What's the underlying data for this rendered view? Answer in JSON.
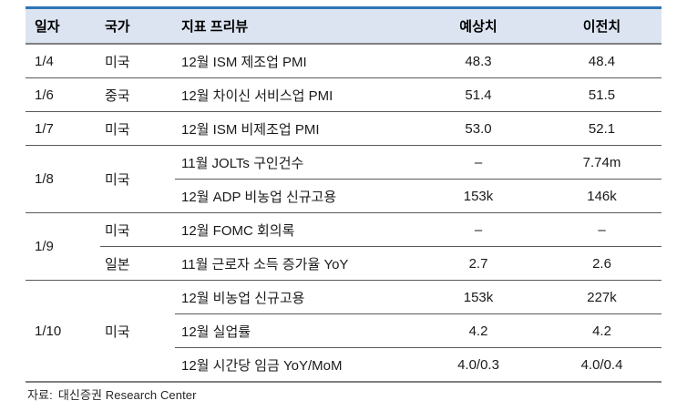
{
  "table": {
    "headers": {
      "date": "일자",
      "country": "국가",
      "indicator": "지표 프리뷰",
      "expected": "예상치",
      "previous": "이전치"
    },
    "rows": [
      {
        "date": "1/4",
        "country": "미국",
        "indicator": "12월 ISM 제조업 PMI",
        "expected": "48.3",
        "previous": "48.4"
      },
      {
        "date": "1/6",
        "country": "중국",
        "indicator": "12월 차이신 서비스업 PMI",
        "expected": "51.4",
        "previous": "51.5"
      },
      {
        "date": "1/7",
        "country": "미국",
        "indicator": "12월 ISM 비제조업 PMI",
        "expected": "53.0",
        "previous": "52.1"
      },
      {
        "date": "1/8",
        "country": "미국",
        "indicator": "11월 JOLTs 구인건수",
        "expected": "–",
        "previous": "7.74m"
      },
      {
        "indicator": "12월 ADP 비농업 신규고용",
        "expected": "153k",
        "previous": "146k"
      },
      {
        "date": "1/9",
        "country": "미국",
        "indicator": "12월 FOMC 회의록",
        "expected": "–",
        "previous": "–"
      },
      {
        "country": "일본",
        "indicator": "11월 근로자 소득 증가율 YoY",
        "expected": "2.7",
        "previous": "2.6"
      },
      {
        "date": "1/10",
        "country": "미국",
        "indicator": "12월 비농업 신규고용",
        "expected": "153k",
        "previous": "227k"
      },
      {
        "indicator": "12월 실업률",
        "expected": "4.2",
        "previous": "4.2"
      },
      {
        "indicator": "12월 시간당 임금 YoY/MoM",
        "expected": "4.0/0.3",
        "previous": "4.0/0.4"
      }
    ]
  },
  "footer": {
    "source_label": "자료:",
    "source_text": "대신증권 Research Center"
  },
  "colors": {
    "top_border_blue": "#2e75b6",
    "header_background": "#dbe4f0",
    "header_bottom_border": "#7f7f7f",
    "row_separator": "#595959",
    "text": "#1a1a1a",
    "page_background": "#ffffff"
  }
}
